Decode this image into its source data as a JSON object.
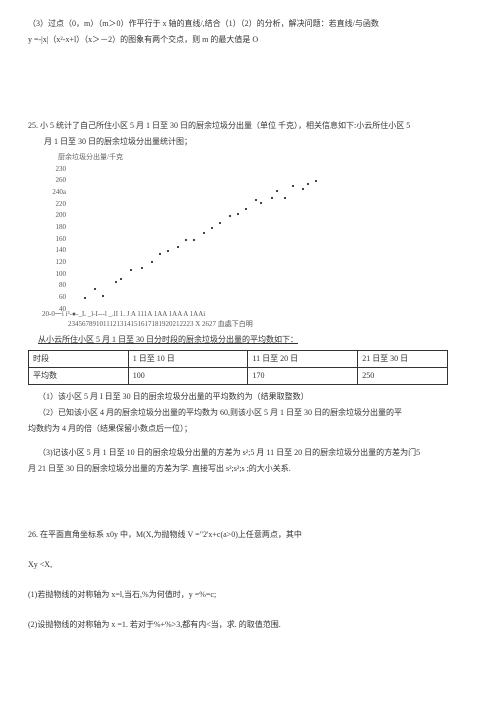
{
  "q24": {
    "part3": "（3）过点（0，m）（m＞0）作平行于 x 轴的直线/,结合（1）（2）的分析，解决问题：若直线/与函数",
    "part3b": "y =-|x|（x²-x+l）（x＞－2）的图象有两个交点，则 m 的最大值是  O"
  },
  "q25": {
    "stem1": "25. 小 5 统计了自己所住小区 5 月 1 日至 30 日的厨余垃圾分出量（单位  千克），相关信息如下:小云所住小区 5",
    "stem2": "月 1 日至 30 日的厨余垃圾分出量统计图；",
    "caption": "厨余垃圾分出量/千克",
    "ylabels": [
      "230",
      "260",
      "240a",
      "220",
      "200",
      "180",
      "160",
      "140",
      "120",
      "100",
      "80",
      "60",
      "40"
    ],
    "axis_row": "20-0一i i³-●-_L _l-I---l _.lI 1. J A 111A 1AA 1AA A 1AAi",
    "x_row": "234567891011121314151617181920212223 X 2627 血處下白明",
    "points": [
      {
        "x": 0.06,
        "y": 0.92
      },
      {
        "x": 0.1,
        "y": 0.85
      },
      {
        "x": 0.13,
        "y": 0.9
      },
      {
        "x": 0.18,
        "y": 0.8
      },
      {
        "x": 0.2,
        "y": 0.78
      },
      {
        "x": 0.24,
        "y": 0.72
      },
      {
        "x": 0.28,
        "y": 0.7
      },
      {
        "x": 0.32,
        "y": 0.66
      },
      {
        "x": 0.35,
        "y": 0.6
      },
      {
        "x": 0.38,
        "y": 0.58
      },
      {
        "x": 0.42,
        "y": 0.55
      },
      {
        "x": 0.45,
        "y": 0.5
      },
      {
        "x": 0.48,
        "y": 0.5
      },
      {
        "x": 0.52,
        "y": 0.45
      },
      {
        "x": 0.55,
        "y": 0.42
      },
      {
        "x": 0.58,
        "y": 0.38
      },
      {
        "x": 0.62,
        "y": 0.33
      },
      {
        "x": 0.65,
        "y": 0.32
      },
      {
        "x": 0.68,
        "y": 0.28
      },
      {
        "x": 0.72,
        "y": 0.22
      },
      {
        "x": 0.74,
        "y": 0.24
      },
      {
        "x": 0.78,
        "y": 0.2
      },
      {
        "x": 0.8,
        "y": 0.15
      },
      {
        "x": 0.83,
        "y": 0.2
      },
      {
        "x": 0.86,
        "y": 0.12
      },
      {
        "x": 0.9,
        "y": 0.14
      },
      {
        "x": 0.92,
        "y": 0.1
      },
      {
        "x": 0.95,
        "y": 0.08
      }
    ],
    "table_intro": "从小云所住小区 5 月 1 日至 30 日分时段的厨余垃圾分出量的平均数如下：",
    "table": {
      "r1": [
        "时段",
        "1 日至 10 日",
        "11 日至 20 日",
        "21 日至 30 日"
      ],
      "r2": [
        "平均数",
        "100",
        "170",
        "250"
      ]
    },
    "p1": "（1）该小区 5 月 I 日至 30 日的厨余垃圾分出量的平均数约为（结果取整数）",
    "p2a": "（2）已知该小区 4 月的厨余垃圾分出量的平均数为 60,则该小区 5 月 1 日至 30 日的厨余垃圾分出量的平",
    "p2b": "均数约为 4 月的倍（结果保留小数点后一位）；",
    "p3a": "（3)记该小区 5 月 1 日至 10 日的厨余垃圾分出量的方差为 s²;5 月 11 日至 20 日的厨余垃圾分出量的方差为门5",
    "p3b": "月 21 日至 30 日的厨余垃圾分出量的方差为学. 直接写出 s²;s²;s ;的大小关系."
  },
  "q26": {
    "stem": "26. 在平面直角坐标系 x0y 中，M(X,为抛物线 V =\"2'x+c(a>0)上任意两点，其中",
    "cond": "Xy <X,",
    "p1": "(1)若抛物线的对称轴为 x=l,当石,%为何值时，y =%=c;",
    "p2": "(2)设抛物线的对称轴为 x =1. 若对于%+%>3,都有内<当，求. 的取值范围."
  }
}
